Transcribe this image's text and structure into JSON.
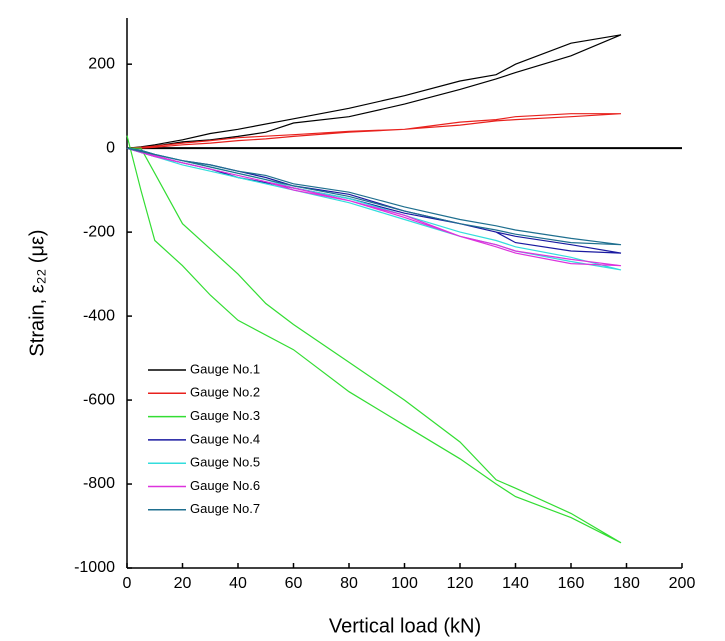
{
  "chart_data": {
    "type": "line",
    "x_label": "Vertical load (kN)",
    "y_label": "Strain, ε₂₂ (με)",
    "x": [
      0,
      5,
      10,
      20,
      30,
      40,
      50,
      60,
      80,
      100,
      120,
      133,
      140,
      160,
      178,
      160,
      140,
      133,
      120,
      100,
      80,
      60,
      40,
      30,
      20,
      10,
      5,
      0
    ],
    "series": [
      {
        "name": "Gauge No.1",
        "color": "#000000",
        "values": [
          0,
          2,
          5,
          15,
          20,
          28,
          38,
          60,
          75,
          105,
          140,
          165,
          180,
          220,
          270,
          250,
          200,
          175,
          160,
          125,
          95,
          70,
          45,
          35,
          20,
          8,
          3,
          0
        ]
      },
      {
        "name": "Gauge No.2",
        "color": "#e8211d",
        "values": [
          0,
          0,
          2,
          8,
          12,
          18,
          22,
          28,
          38,
          45,
          55,
          65,
          68,
          75,
          82,
          82,
          75,
          68,
          62,
          45,
          40,
          32,
          25,
          18,
          12,
          5,
          2,
          0
        ]
      },
      {
        "name": "Gauge No.3",
        "color": "#33dd33",
        "values": [
          0,
          0,
          -60,
          -180,
          -240,
          -300,
          -370,
          -420,
          -510,
          -600,
          -700,
          -790,
          -810,
          -870,
          -940,
          -880,
          -830,
          -800,
          -740,
          -660,
          -580,
          -480,
          -410,
          -350,
          -280,
          -220,
          -100,
          30
        ]
      },
      {
        "name": "Gauge No.4",
        "color": "#1a1aa0",
        "values": [
          0,
          -5,
          -15,
          -30,
          -40,
          -55,
          -70,
          -90,
          -110,
          -150,
          -180,
          -200,
          -210,
          -230,
          -250,
          -245,
          -225,
          -200,
          -180,
          -155,
          -120,
          -95,
          -70,
          -50,
          -35,
          -20,
          -10,
          0
        ]
      },
      {
        "name": "Gauge No.5",
        "color": "#33dddd",
        "values": [
          0,
          -5,
          -15,
          -30,
          -45,
          -60,
          -75,
          -95,
          -120,
          -160,
          -200,
          -220,
          -235,
          -260,
          -290,
          -270,
          -245,
          -230,
          -210,
          -170,
          -130,
          -100,
          -70,
          -55,
          -40,
          -20,
          -10,
          0
        ]
      },
      {
        "name": "Gauge No.6",
        "color": "#dd33dd",
        "values": [
          0,
          -8,
          -18,
          -35,
          -50,
          -65,
          -80,
          -100,
          -125,
          -165,
          -210,
          -230,
          -245,
          -265,
          -280,
          -275,
          -250,
          -235,
          -210,
          -160,
          -125,
          -95,
          -65,
          -50,
          -35,
          -20,
          -10,
          0
        ]
      },
      {
        "name": "Gauge No.7",
        "color": "#1f6f8f",
        "values": [
          0,
          -5,
          -15,
          -30,
          -40,
          -55,
          -65,
          -85,
          -105,
          -140,
          -170,
          -185,
          -195,
          -215,
          -230,
          -225,
          -205,
          -195,
          -180,
          -150,
          -115,
          -90,
          -60,
          -45,
          -30,
          -15,
          -8,
          0
        ]
      }
    ],
    "xlim": [
      0,
      200
    ],
    "xticks": [
      0,
      20,
      40,
      60,
      80,
      100,
      120,
      140,
      160,
      180,
      200
    ],
    "ylim": [
      -1000,
      310
    ],
    "yticks": [
      -1000,
      -800,
      -600,
      -400,
      -200,
      0,
      200
    ],
    "legend": "lower-left"
  }
}
